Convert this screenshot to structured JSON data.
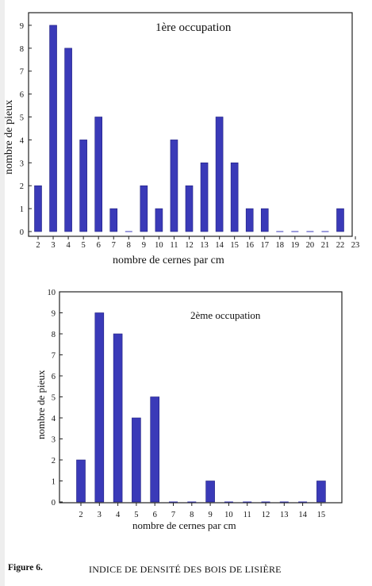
{
  "figure": {
    "label": "Figure 6.",
    "title": "INDICE DE DENSITÉ DES BOIS DE LISIÈRE"
  },
  "chart_data": [
    {
      "type": "bar",
      "title": "1ère occupation",
      "xlabel": "nombre de cernes par cm",
      "ylabel": "nombre de pieux",
      "x_ticks": [
        2,
        3,
        4,
        5,
        6,
        7,
        8,
        9,
        10,
        11,
        12,
        13,
        14,
        15,
        16,
        17,
        18,
        19,
        20,
        21,
        22,
        23
      ],
      "y_ticks": [
        0,
        1,
        2,
        3,
        4,
        5,
        6,
        7,
        8,
        9
      ],
      "ylim": [
        0,
        10
      ],
      "categories": [
        2,
        3,
        4,
        5,
        6,
        7,
        8,
        9,
        10,
        11,
        12,
        13,
        14,
        15,
        16,
        17,
        18,
        19,
        20,
        21,
        22
      ],
      "values": [
        2,
        9,
        8,
        4,
        5,
        1,
        0,
        2,
        1,
        4,
        2,
        3,
        5,
        3,
        1,
        1,
        0,
        0,
        0,
        0,
        1
      ],
      "grid": false,
      "bar_color": "#3a3ab8"
    },
    {
      "type": "bar",
      "title": "2ème occupation",
      "xlabel": "nombre de cernes par cm",
      "ylabel": "nombre de pieux",
      "x_ticks": [
        2,
        3,
        4,
        5,
        6,
        7,
        8,
        9,
        10,
        11,
        12,
        13,
        14,
        15
      ],
      "y_ticks": [
        0,
        1,
        2,
        3,
        4,
        5,
        6,
        7,
        8,
        9,
        10
      ],
      "ylim": [
        0,
        10
      ],
      "categories": [
        2,
        3,
        4,
        5,
        6,
        7,
        8,
        9,
        10,
        11,
        12,
        13,
        14,
        15
      ],
      "values": [
        2,
        9,
        8,
        4,
        5,
        0,
        0,
        1,
        0,
        0,
        0,
        0,
        0,
        1
      ],
      "grid": false,
      "bar_color": "#3a3ab8"
    }
  ]
}
